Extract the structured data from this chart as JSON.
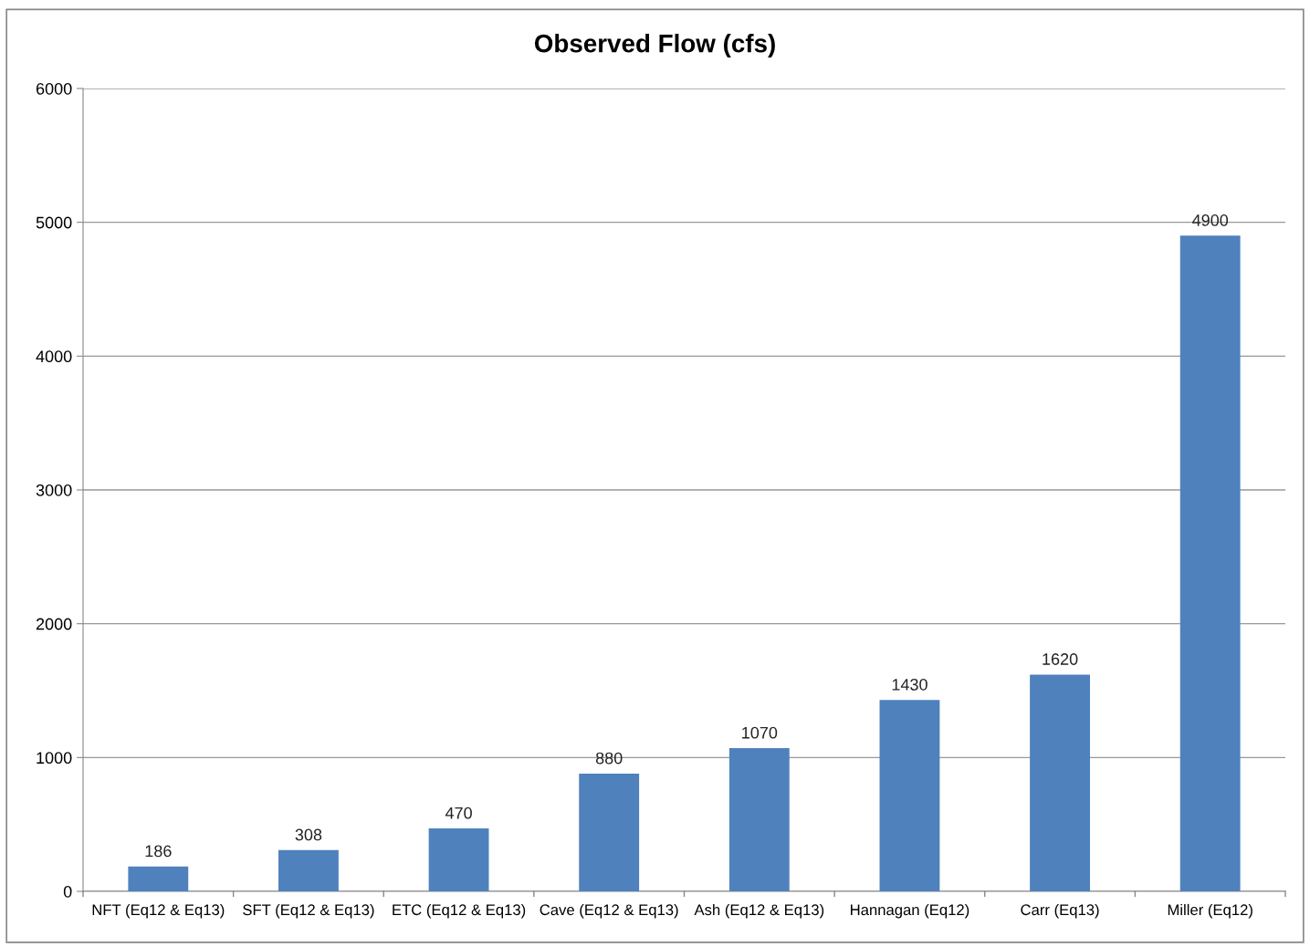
{
  "chart_data": {
    "type": "bar",
    "title": "Observed Flow (cfs)",
    "categories": [
      "NFT (Eq12 & Eq13)",
      "SFT (Eq12 & Eq13)",
      "ETC (Eq12 & Eq13)",
      "Cave (Eq12 & Eq13)",
      "Ash (Eq12 & Eq13)",
      "Hannagan (Eq12)",
      "Carr (Eq13)",
      "Miller (Eq12)"
    ],
    "values": [
      186,
      308,
      470,
      880,
      1070,
      1430,
      1620,
      4900
    ],
    "color": "#4f81bd",
    "ylim": [
      0,
      6000
    ],
    "yticks": [
      0,
      1000,
      2000,
      3000,
      4000,
      5000,
      6000
    ],
    "grid": "y",
    "data_labels": true,
    "legend": false
  }
}
